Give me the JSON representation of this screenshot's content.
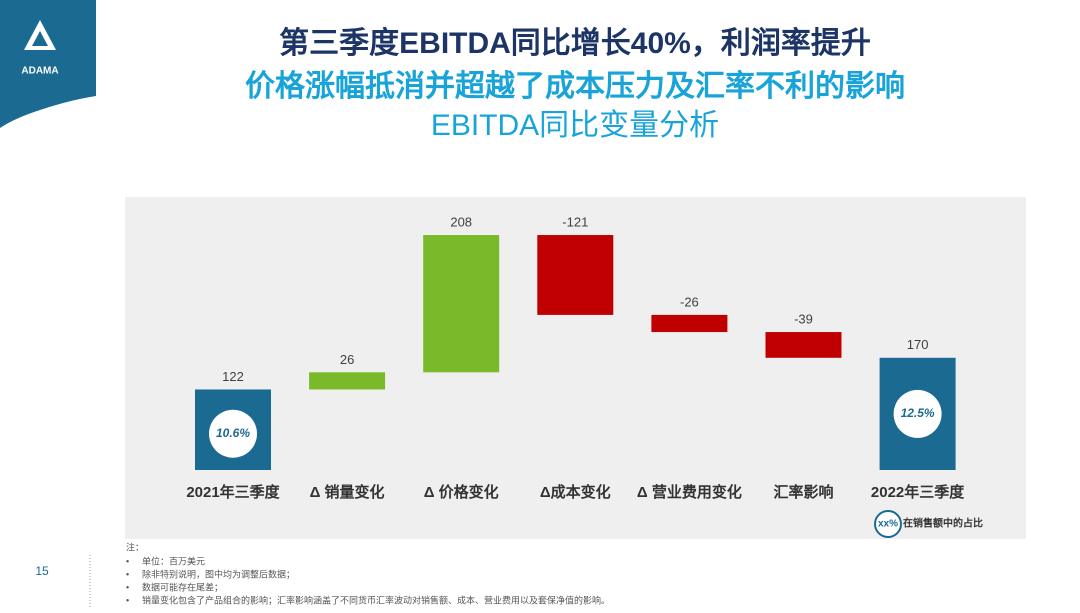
{
  "logo": "ADAMA",
  "header": {
    "title": "第三季度EBITDA同比增长40%，利润率提升",
    "subtitle": "价格涨幅抵消并超越了成本压力及汇率不利的影响",
    "chart_title": "EBITDA同比变量分析"
  },
  "chart_data": {
    "type": "waterfall",
    "categories": [
      "2021年三季度",
      "Δ 销量变化",
      "Δ 价格变化",
      "Δ成本变化",
      "Δ 营业费用变化",
      "汇率影响",
      "2022年三季度"
    ],
    "values": [
      122,
      26,
      208,
      -121,
      -26,
      -39,
      170
    ],
    "colors": [
      "#1a6a92",
      "#7ab929",
      "#7ab929",
      "#c00000",
      "#c00000",
      "#c00000",
      "#1a6a92"
    ],
    "share_labels": [
      "10.6%",
      null,
      null,
      null,
      null,
      null,
      "12.5%"
    ],
    "legend": {
      "sample": "xx%",
      "text": "在销售额中的占比"
    }
  },
  "notes": {
    "heading": "注：",
    "items": [
      "单位：百万美元",
      "除非特别说明，图中均为调整后数据；",
      "数据可能存在尾差；",
      "销量变化包含了产品组合的影响；汇率影响涵盖了不同货币汇率波动对销售额、成本、营业费用以及套保净值的影响。"
    ]
  },
  "page_number": "15"
}
